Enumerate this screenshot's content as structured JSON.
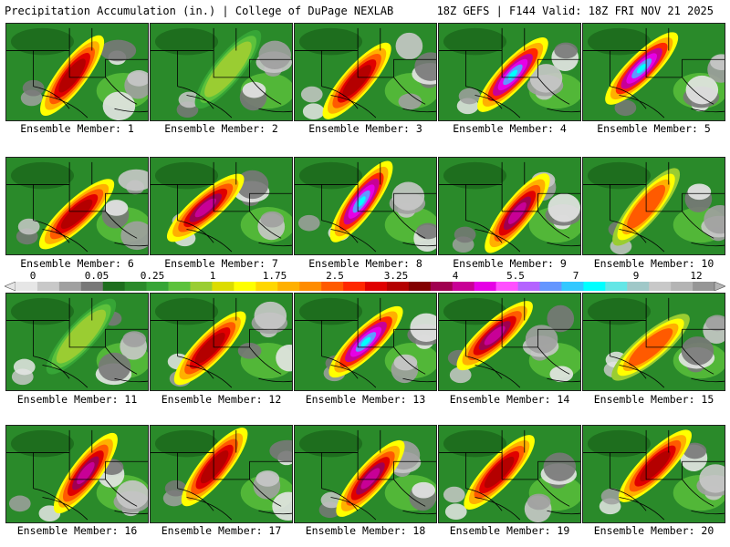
{
  "header": {
    "title": "Precipitation Accumulation (in.) | College of DuPage NEXLAB",
    "run_info": "18Z GEFS | F144 Valid: 18Z FRI NOV 21 2025"
  },
  "legend": {
    "ticks": [
      "0",
      "0.05",
      "0.25",
      "1",
      "1.75",
      "2.5",
      "3.25",
      "4",
      "5.5",
      "7",
      "9",
      "12"
    ],
    "colors": [
      "#e6e6e6",
      "#c8c8c8",
      "#a0a0a0",
      "#787878",
      "#1e6e1e",
      "#2a8a2a",
      "#36a536",
      "#5cc23c",
      "#9acd32",
      "#dcdc00",
      "#ffff00",
      "#ffd700",
      "#ffb000",
      "#ff8c00",
      "#ff5a00",
      "#ff2800",
      "#e00000",
      "#b40000",
      "#820000",
      "#a00050",
      "#c80096",
      "#e600e6",
      "#ff50ff",
      "#b464ff",
      "#6496ff",
      "#32c8ff",
      "#00ffff",
      "#64e6e6",
      "#a0c8c8",
      "#c8c8c8",
      "#b4b4b4",
      "#969696"
    ]
  },
  "members": [
    {
      "label": "Ensemble Member: 1",
      "peak": "high"
    },
    {
      "label": "Ensemble Member: 2",
      "peak": "low"
    },
    {
      "label": "Ensemble Member: 3",
      "peak": "high"
    },
    {
      "label": "Ensemble Member: 4",
      "peak": "extreme"
    },
    {
      "label": "Ensemble Member: 5",
      "peak": "extreme"
    },
    {
      "label": "Ensemble Member: 6",
      "peak": "high"
    },
    {
      "label": "Ensemble Member: 7",
      "peak": "veryhigh"
    },
    {
      "label": "Ensemble Member: 8",
      "peak": "extreme"
    },
    {
      "label": "Ensemble Member: 9",
      "peak": "veryhigh"
    },
    {
      "label": "Ensemble Member: 10",
      "peak": "moderate"
    },
    {
      "label": "Ensemble Member: 11",
      "peak": "low"
    },
    {
      "label": "Ensemble Member: 12",
      "peak": "high"
    },
    {
      "label": "Ensemble Member: 13",
      "peak": "extreme"
    },
    {
      "label": "Ensemble Member: 14",
      "peak": "veryhigh"
    },
    {
      "label": "Ensemble Member: 15",
      "peak": "moderate"
    },
    {
      "label": "Ensemble Member: 16",
      "peak": "veryhigh"
    },
    {
      "label": "Ensemble Member: 17",
      "peak": "high"
    },
    {
      "label": "Ensemble Member: 18",
      "peak": "veryhigh"
    },
    {
      "label": "Ensemble Member: 19",
      "peak": "high"
    },
    {
      "label": "Ensemble Member: 20",
      "peak": "high"
    }
  ]
}
